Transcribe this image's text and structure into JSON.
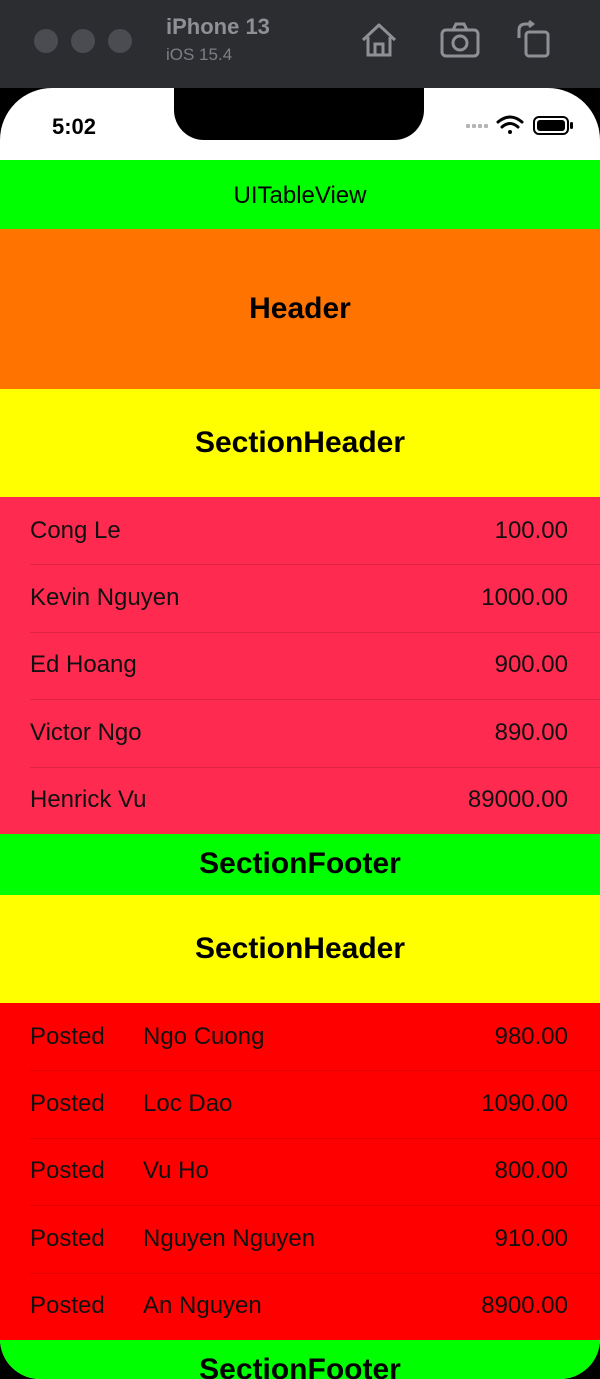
{
  "simulator": {
    "device": "iPhone 13",
    "os": "iOS 15.4",
    "icons": [
      "home-icon",
      "screenshot-icon",
      "rotate-icon"
    ]
  },
  "status_bar": {
    "time": "5:02",
    "icons": [
      "cellular-icon",
      "wifi-icon",
      "battery-icon"
    ]
  },
  "nav_bar": {
    "title": "UITableView"
  },
  "table_header": {
    "label": "Header"
  },
  "sections": [
    {
      "header": "SectionHeader",
      "footer": "SectionFooter",
      "color": "#ff2a4f",
      "rows": [
        {
          "name": "Cong Le",
          "amount": "100.00"
        },
        {
          "name": "Kevin Nguyen",
          "amount": "1000.00"
        },
        {
          "name": "Ed Hoang",
          "amount": "900.00"
        },
        {
          "name": "Victor Ngo",
          "amount": "890.00"
        },
        {
          "name": "Henrick Vu",
          "amount": "89000.00"
        }
      ]
    },
    {
      "header": "SectionHeader",
      "footer": "SectionFooter",
      "color": "#ff0000",
      "rows": [
        {
          "status": "Posted",
          "name": "Ngo Cuong",
          "amount": "980.00"
        },
        {
          "status": "Posted",
          "name": "Loc Dao",
          "amount": "1090.00"
        },
        {
          "status": "Posted",
          "name": "Vu Ho",
          "amount": "800.00"
        },
        {
          "status": "Posted",
          "name": "Nguyen Nguyen",
          "amount": "910.00"
        },
        {
          "status": "Posted",
          "name": "An Nguyen",
          "amount": "8900.00"
        }
      ]
    }
  ],
  "colors": {
    "nav_bar": "#00ff00",
    "header": "#ff7300",
    "section_header": "#ffff00",
    "section_footer": "#00ff00"
  }
}
